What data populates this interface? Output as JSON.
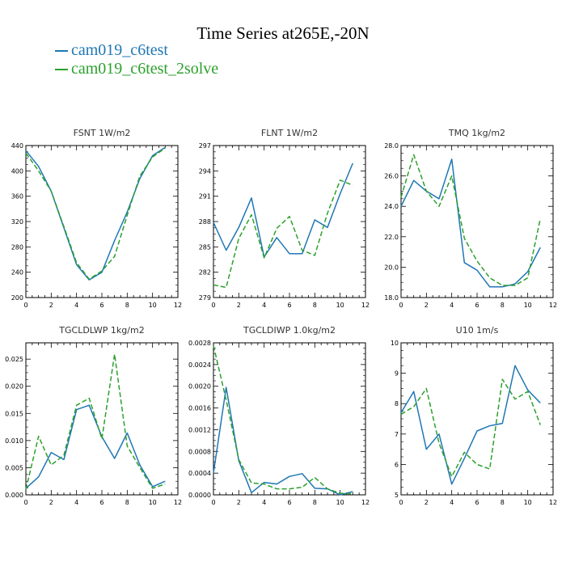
{
  "title": "Time Series at265E,-20N",
  "legend": [
    {
      "label": "cam019_c6test",
      "color": "#1f77b4"
    },
    {
      "label": "cam019_c6test_2solve",
      "color": "#2ca02c"
    }
  ],
  "chart_data": [
    {
      "type": "line",
      "title": "FSNT   1W/m2",
      "xlim": [
        0,
        12
      ],
      "ylim": [
        200,
        440
      ],
      "xticks": [
        0,
        2,
        4,
        6,
        8,
        10,
        12
      ],
      "yticks": [
        200,
        240,
        280,
        320,
        360,
        400,
        440
      ],
      "ytick_labels": [
        "200",
        "240",
        "280",
        "320",
        "360",
        "400",
        "440"
      ],
      "x": [
        0,
        1,
        2,
        3,
        4,
        5,
        6,
        7,
        8,
        9,
        10,
        11
      ],
      "series": [
        {
          "name": "cam019_c6test",
          "color": "#1f77b4",
          "dash": "",
          "values": [
            432,
            407,
            368,
            310,
            252,
            228,
            240,
            290,
            335,
            388,
            424,
            437
          ]
        },
        {
          "name": "cam019_c6test_2solve",
          "color": "#2ca02c",
          "dash": "6,3",
          "values": [
            428,
            400,
            368,
            312,
            255,
            229,
            242,
            265,
            330,
            392,
            422,
            436
          ]
        }
      ]
    },
    {
      "type": "line",
      "title": "FLNT   1W/m2",
      "xlim": [
        0,
        12
      ],
      "ylim": [
        279,
        297
      ],
      "xticks": [
        0,
        2,
        4,
        6,
        8,
        10,
        12
      ],
      "yticks": [
        279,
        282,
        285,
        288,
        291,
        294,
        297
      ],
      "ytick_labels": [
        "279",
        "282",
        "285",
        "288",
        "291",
        "294",
        "297"
      ],
      "x": [
        0,
        1,
        2,
        3,
        4,
        5,
        6,
        7,
        8,
        9,
        10,
        11
      ],
      "series": [
        {
          "name": "cam019_c6test",
          "color": "#1f77b4",
          "dash": "",
          "values": [
            287.9,
            284.6,
            287.3,
            290.8,
            283.8,
            286.1,
            284.2,
            284.2,
            288.2,
            287.3,
            291.3,
            294.9
          ]
        },
        {
          "name": "cam019_c6test_2solve",
          "color": "#2ca02c",
          "dash": "6,3",
          "values": [
            280.5,
            280.2,
            286.0,
            288.8,
            283.7,
            287.2,
            288.6,
            284.6,
            284.0,
            289.0,
            292.9,
            292.3
          ]
        }
      ]
    },
    {
      "type": "line",
      "title": "TMQ   1kg/m2",
      "xlim": [
        0,
        12
      ],
      "ylim": [
        18,
        28
      ],
      "xticks": [
        0,
        2,
        4,
        6,
        8,
        10,
        12
      ],
      "yticks": [
        18,
        20,
        22,
        24,
        26,
        28
      ],
      "ytick_labels": [
        "18.0",
        "20.0",
        "22.0",
        "24.0",
        "26.0",
        "28.0"
      ],
      "x": [
        0,
        1,
        2,
        3,
        4,
        5,
        6,
        7,
        8,
        9,
        10,
        11
      ],
      "series": [
        {
          "name": "cam019_c6test",
          "color": "#1f77b4",
          "dash": "",
          "values": [
            24.0,
            25.7,
            25.0,
            24.5,
            27.1,
            20.3,
            19.8,
            18.7,
            18.7,
            18.9,
            19.7,
            21.3
          ]
        },
        {
          "name": "cam019_c6test_2solve",
          "color": "#2ca02c",
          "dash": "6,3",
          "values": [
            24.6,
            27.4,
            25.0,
            24.0,
            26.0,
            21.9,
            20.4,
            19.3,
            18.8,
            18.8,
            19.3,
            23.2
          ]
        }
      ]
    },
    {
      "type": "line",
      "title": "TGCLDLWP   1kg/m2",
      "xlim": [
        0,
        12
      ],
      "ylim": [
        0,
        0.028
      ],
      "xticks": [
        0,
        2,
        4,
        6,
        8,
        10,
        12
      ],
      "yticks": [
        0,
        0.005,
        0.01,
        0.015,
        0.02,
        0.025
      ],
      "ytick_labels": [
        "0.000",
        "0.005",
        "0.010",
        "0.015",
        "0.020",
        "0.025"
      ],
      "x": [
        0,
        1,
        2,
        3,
        4,
        5,
        6,
        7,
        8,
        9,
        10,
        11
      ],
      "series": [
        {
          "name": "cam019_c6test",
          "color": "#1f77b4",
          "dash": "",
          "values": [
            0.0012,
            0.0033,
            0.0078,
            0.0065,
            0.0157,
            0.0165,
            0.0107,
            0.0067,
            0.0114,
            0.0055,
            0.0015,
            0.0025
          ]
        },
        {
          "name": "cam019_c6test_2solve",
          "color": "#2ca02c",
          "dash": "6,3",
          "values": [
            0.001,
            0.0108,
            0.0055,
            0.0073,
            0.0165,
            0.0178,
            0.0103,
            0.0259,
            0.009,
            0.005,
            0.0012,
            0.002
          ]
        }
      ]
    },
    {
      "type": "line",
      "title": "TGCLDIWP   1.0kg/m2",
      "xlim": [
        0,
        12
      ],
      "ylim": [
        0,
        0.0028
      ],
      "xticks": [
        0,
        2,
        4,
        6,
        8,
        10,
        12
      ],
      "yticks": [
        0,
        0.0004,
        0.0008,
        0.0012,
        0.0016,
        0.002,
        0.0024,
        0.0028
      ],
      "ytick_labels": [
        "0.0000",
        "0.0004",
        "0.0008",
        "0.0012",
        "0.0016",
        "0.0020",
        "0.0024",
        "0.0028"
      ],
      "x": [
        0,
        1,
        2,
        3,
        4,
        5,
        6,
        7,
        8,
        9,
        10,
        11
      ],
      "series": [
        {
          "name": "cam019_c6test",
          "color": "#1f77b4",
          "dash": "",
          "values": [
            0.0004,
            0.00198,
            0.00063,
            4e-05,
            0.00023,
            0.0002,
            0.00034,
            0.00039,
            0.00012,
            0.00011,
            0.0,
            6e-05
          ]
        },
        {
          "name": "cam019_c6test_2solve",
          "color": "#2ca02c",
          "dash": "6,3",
          "values": [
            0.00275,
            0.00175,
            0.00065,
            0.00022,
            0.0002,
            0.00011,
            0.00011,
            0.00014,
            0.00032,
            0.00011,
            3e-05,
            2e-05
          ]
        }
      ]
    },
    {
      "type": "line",
      "title": "U10   1m/s",
      "xlim": [
        0,
        12
      ],
      "ylim": [
        5,
        10
      ],
      "xticks": [
        0,
        2,
        4,
        6,
        8,
        10,
        12
      ],
      "yticks": [
        5,
        6,
        7,
        8,
        9,
        10
      ],
      "ytick_labels": [
        "5",
        "6",
        "7",
        "8",
        "9",
        "10"
      ],
      "x": [
        0,
        1,
        2,
        3,
        4,
        5,
        6,
        7,
        8,
        9,
        10,
        11
      ],
      "series": [
        {
          "name": "cam019_c6test",
          "color": "#1f77b4",
          "dash": "",
          "values": [
            7.7,
            8.4,
            6.5,
            7.0,
            5.35,
            6.2,
            7.1,
            7.27,
            7.35,
            9.25,
            8.45,
            8.02
          ]
        },
        {
          "name": "cam019_c6test_2solve",
          "color": "#2ca02c",
          "dash": "6,3",
          "values": [
            7.65,
            7.9,
            8.5,
            6.7,
            5.6,
            6.4,
            6.0,
            5.85,
            8.8,
            8.15,
            8.4,
            7.3
          ]
        }
      ]
    }
  ]
}
